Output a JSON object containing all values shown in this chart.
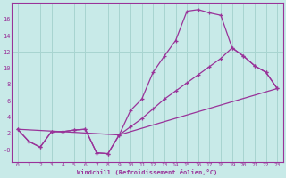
{
  "background_color": "#c8eae8",
  "grid_color": "#a8d4d0",
  "line_color": "#993399",
  "x_ticks": [
    0,
    1,
    2,
    3,
    4,
    5,
    6,
    7,
    8,
    9,
    10,
    11,
    12,
    13,
    14,
    15,
    16,
    17,
    18,
    19,
    20,
    21,
    22,
    23
  ],
  "y_ticks": [
    0,
    2,
    4,
    6,
    8,
    10,
    12,
    14,
    16
  ],
  "y_tick_labels": [
    "-0",
    "2",
    "4",
    "6",
    "8",
    "10",
    "12",
    "14",
    "16"
  ],
  "ylim": [
    -1.5,
    18.0
  ],
  "xlim": [
    -0.5,
    23.5
  ],
  "curve1_x": [
    0,
    1,
    2,
    3,
    4,
    5,
    6,
    7,
    8,
    9,
    10,
    11,
    12,
    13,
    14,
    15,
    16,
    17,
    18,
    19,
    20,
    21,
    22,
    23
  ],
  "curve1_y": [
    2.5,
    1.0,
    0.3,
    2.2,
    2.2,
    2.4,
    2.5,
    -0.4,
    -0.5,
    1.8,
    4.8,
    6.2,
    9.5,
    11.5,
    13.4,
    17.0,
    17.2,
    16.8,
    16.5,
    12.5,
    11.5,
    10.3,
    9.5,
    7.5
  ],
  "curve2_x": [
    0,
    1,
    2,
    3,
    4,
    5,
    6,
    7,
    8,
    9,
    10,
    11,
    12,
    13,
    14,
    15,
    16,
    17,
    18,
    19,
    20,
    21,
    22,
    23
  ],
  "curve2_y": [
    2.5,
    1.0,
    0.3,
    2.2,
    2.2,
    2.4,
    2.5,
    -0.4,
    -0.5,
    1.8,
    2.8,
    3.8,
    5.0,
    6.2,
    7.2,
    8.2,
    9.2,
    10.2,
    11.2,
    12.5,
    11.5,
    10.3,
    9.5,
    7.5
  ],
  "curve3_x": [
    0,
    4,
    9,
    23
  ],
  "curve3_y": [
    2.5,
    2.2,
    1.8,
    7.5
  ],
  "xlabel": "Windchill (Refroidissement éolien,°C)"
}
